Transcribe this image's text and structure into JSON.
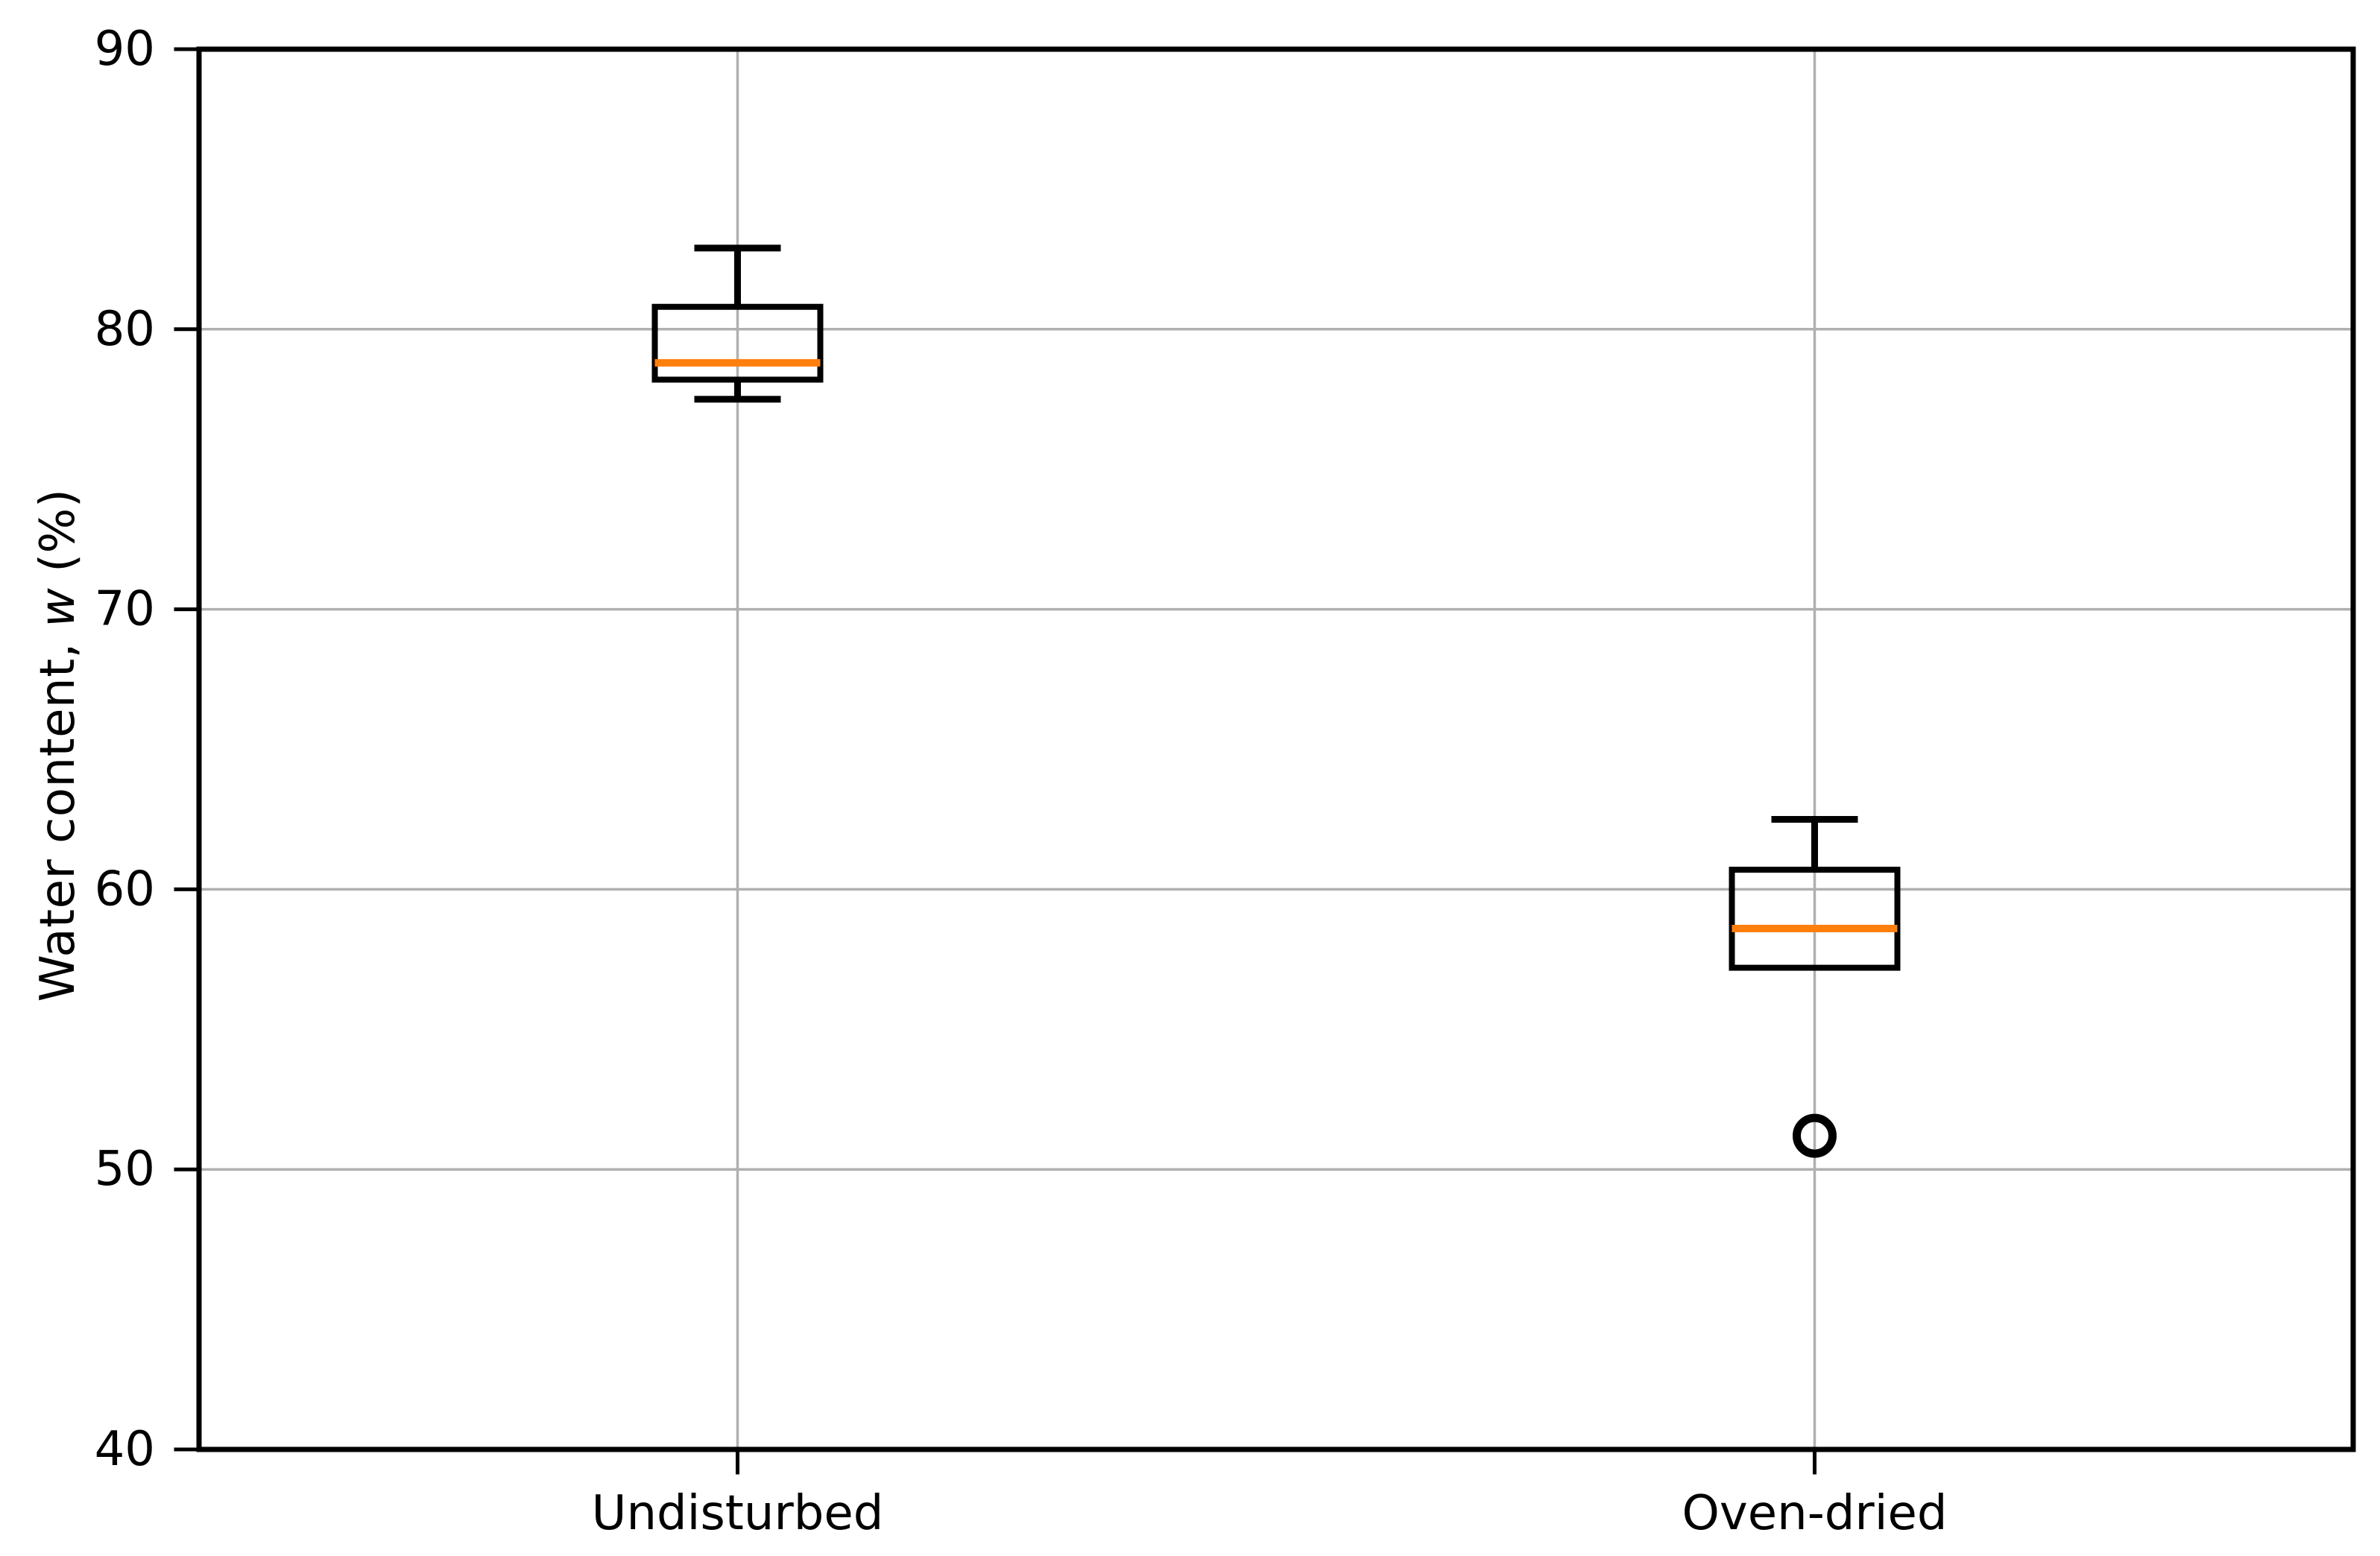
{
  "figure": {
    "background": "#ffffff",
    "y_axis_label": {
      "prefix": "Water content, ",
      "symbol": "w",
      "suffix": " (%)"
    }
  },
  "chart_data": {
    "type": "box",
    "title": "",
    "xlabel": "",
    "ylabel": "Water content, w (%)",
    "categories": [
      "Undisturbed",
      "Oven-dried"
    ],
    "series": [
      {
        "name": "Undisturbed",
        "whisker_low": 77.5,
        "q1": 78.2,
        "median": 78.8,
        "q3": 80.8,
        "whisker_high": 82.9,
        "outliers": []
      },
      {
        "name": "Oven-dried",
        "whisker_low": 57.2,
        "q1": 57.2,
        "median": 58.6,
        "q3": 60.7,
        "whisker_high": 62.5,
        "outliers": [
          51.2
        ]
      }
    ],
    "ylim": [
      40,
      90
    ],
    "yticks": [
      40,
      50,
      60,
      70,
      80,
      90
    ],
    "grid": true,
    "legend": false,
    "colors": {
      "median": "#ff7f0e",
      "box_edge": "#000000",
      "grid": "#b0b0b0",
      "text": "#000000",
      "background": "#ffffff"
    }
  }
}
